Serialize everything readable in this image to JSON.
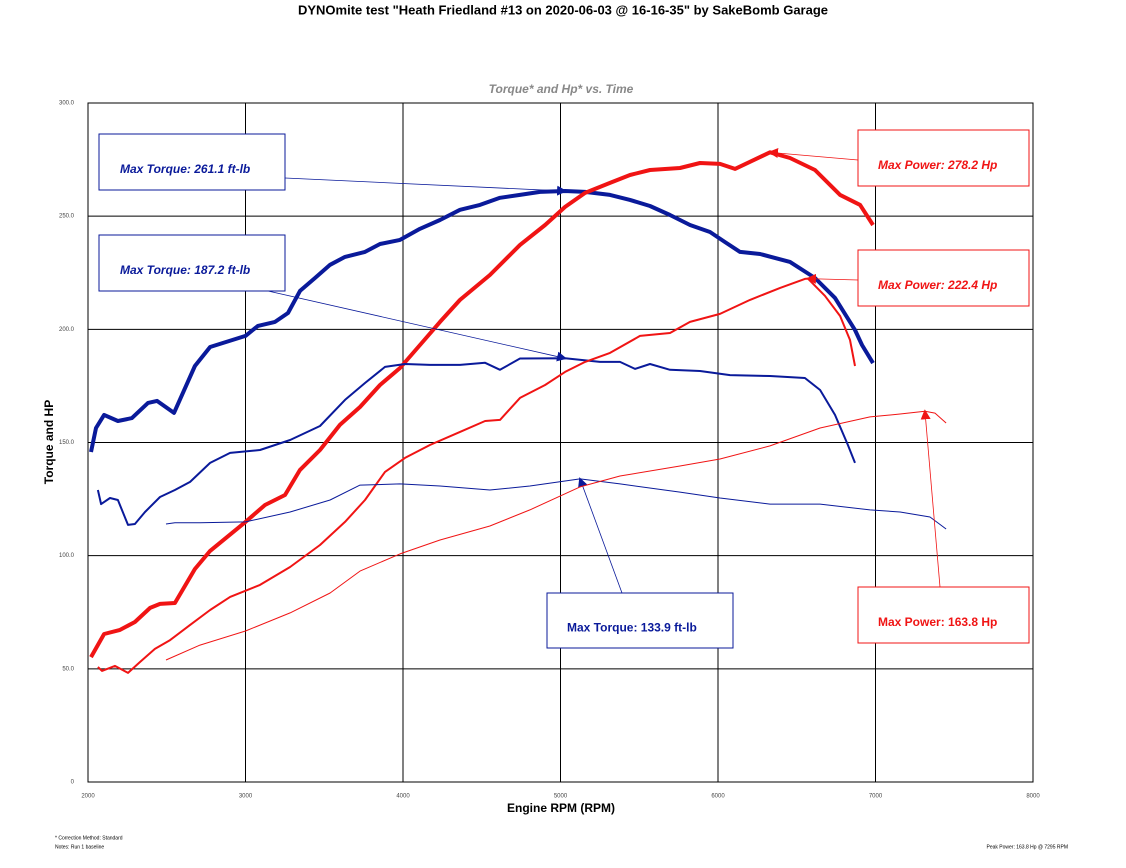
{
  "chart_data": {
    "type": "line",
    "title": "DYNOmite test \"Heath Friedland #13 on 2020-06-03 @ 16-16-35\" by SakeBomb Garage",
    "subtitle": "Torque* and Hp* vs. Time",
    "x_label": "Engine RPM (RPM)",
    "y_label": "Torque and HP",
    "footnotes": [
      "* Correction Method: Standard",
      "Notes: Run 1 baseline"
    ],
    "peak_note": "Peak Power: 163.8 Hp @ 7295 RPM",
    "xlim": [
      2000,
      8000
    ],
    "xticks": [
      2000,
      3000,
      4000,
      5000,
      6000,
      7000,
      8000
    ],
    "ylim": [
      0,
      300
    ],
    "yticks": [
      {
        "value": 0,
        "label": "0"
      },
      {
        "value": 50,
        "label": "50.0"
      },
      {
        "value": 100,
        "label": "100.0"
      },
      {
        "value": 150,
        "label": "150.0"
      },
      {
        "value": 200,
        "label": "200.0"
      },
      {
        "value": 250,
        "label": "250.0"
      },
      {
        "value": 300,
        "label": "300.0"
      }
    ],
    "grid": true,
    "series": [
      {
        "color": "#0a1a9a",
        "annotation": "Max Torque: 261.1 ft-lb",
        "x": [
          2019,
          2051,
          2102,
          2190,
          2279,
          2381,
          2438,
          2546,
          2679,
          2775,
          3000,
          3079,
          3187,
          3270,
          3346,
          3441,
          3537,
          3632,
          3759,
          3854,
          3981,
          4108,
          4235,
          4362,
          4489,
          4616,
          4743,
          4870,
          5029,
          5156,
          5314,
          5441,
          5568,
          5695,
          5822,
          5949,
          6044,
          6140,
          6267,
          6457,
          6616,
          6743,
          6870,
          6914,
          6984
        ],
        "values": [
          145.8,
          156.4,
          162.2,
          159.5,
          160.8,
          167.5,
          168.4,
          163.1,
          183.8,
          192.2,
          197.1,
          201.5,
          203.3,
          207.2,
          217.0,
          222.7,
          228.5,
          232.0,
          234.2,
          237.7,
          239.5,
          244.4,
          248.3,
          252.8,
          255.0,
          258.1,
          259.4,
          260.7,
          261.1,
          260.7,
          259.4,
          257.2,
          254.5,
          250.5,
          246.1,
          243.0,
          238.6,
          234.2,
          233.3,
          229.8,
          222.7,
          213.9,
          199.7,
          193.1,
          185.1
        ]
      },
      {
        "color": "#f01414",
        "annotation": "Max Power: 278.2 Hp",
        "x": [
          2019,
          2102,
          2203,
          2298,
          2394,
          2457,
          2552,
          2679,
          2775,
          3000,
          3124,
          3251,
          3346,
          3473,
          3600,
          3727,
          3854,
          3981,
          4108,
          4235,
          4362,
          4552,
          4743,
          4902,
          5029,
          5156,
          5314,
          5441,
          5568,
          5759,
          5886,
          6013,
          6108,
          6203,
          6330,
          6457,
          6616,
          6775,
          6902,
          6984
        ],
        "values": [
          55.2,
          65.4,
          67.2,
          70.7,
          76.9,
          78.7,
          79.1,
          94.1,
          102.1,
          114.9,
          122.4,
          126.8,
          137.9,
          146.7,
          157.8,
          165.7,
          175.4,
          182.9,
          193.1,
          203.3,
          213.0,
          224.0,
          237.3,
          246.1,
          254.1,
          260.3,
          264.7,
          268.2,
          270.4,
          271.3,
          273.5,
          273.1,
          270.9,
          274.0,
          278.2,
          275.7,
          270.4,
          259.4,
          255.0,
          246.1
        ]
      },
      {
        "color": "#0a1a9a",
        "annotation": "Max Torque: 187.2 ft-lb",
        "x": [
          2063,
          2083,
          2140,
          2190,
          2254,
          2298,
          2362,
          2457,
          2552,
          2648,
          2775,
          2902,
          3092,
          3283,
          3473,
          3632,
          3759,
          3886,
          4013,
          4171,
          4362,
          4521,
          4616,
          4743,
          5029,
          5251,
          5378,
          5473,
          5568,
          5695,
          5886,
          6076,
          6330,
          6552,
          6648,
          6743,
          6825,
          6870
        ],
        "values": [
          129.0,
          122.8,
          125.5,
          124.6,
          113.6,
          114.0,
          119.3,
          125.9,
          129.0,
          132.6,
          141.0,
          145.4,
          146.7,
          151.1,
          157.3,
          168.8,
          176.3,
          183.4,
          184.7,
          184.3,
          184.3,
          185.2,
          182.1,
          187.1,
          187.2,
          185.6,
          185.6,
          182.5,
          184.7,
          182.1,
          181.6,
          179.8,
          179.4,
          178.5,
          173.2,
          162.2,
          148.9,
          141.0
        ]
      },
      {
        "color": "#f01414",
        "annotation": "Max Power: 222.4 Hp",
        "x": [
          2063,
          2089,
          2171,
          2254,
          2330,
          2425,
          2521,
          2648,
          2775,
          2902,
          3092,
          3283,
          3473,
          3632,
          3759,
          3886,
          4013,
          4171,
          4362,
          4521,
          4616,
          4743,
          4902,
          5029,
          5156,
          5314,
          5505,
          5695,
          5822,
          6013,
          6203,
          6394,
          6552,
          6571,
          6679,
          6775,
          6838,
          6870
        ],
        "values": [
          50.8,
          49.1,
          51.3,
          48.2,
          53.0,
          58.8,
          62.7,
          69.4,
          76.0,
          81.8,
          87.1,
          95.0,
          104.7,
          114.9,
          124.6,
          137.0,
          143.2,
          148.9,
          154.7,
          159.5,
          160.0,
          169.7,
          175.4,
          181.2,
          185.6,
          189.6,
          197.1,
          198.4,
          203.3,
          206.8,
          213.0,
          218.3,
          222.3,
          222.4,
          214.8,
          205.9,
          195.3,
          183.8
        ]
      },
      {
        "color": "#0a1a9a",
        "annotation": "Max Torque: 133.9 ft-lb",
        "x": [
          2495,
          2552,
          2711,
          3000,
          3283,
          3537,
          3727,
          3981,
          4235,
          4552,
          4806,
          5124,
          5378,
          5759,
          6013,
          6330,
          6648,
          6965,
          7156,
          7346,
          7448
        ],
        "values": [
          114.0,
          114.5,
          114.5,
          114.9,
          119.3,
          124.6,
          131.2,
          131.7,
          130.8,
          129.0,
          130.8,
          133.9,
          131.7,
          128.1,
          125.5,
          122.8,
          122.8,
          120.2,
          119.3,
          117.1,
          111.8
        ]
      },
      {
        "color": "#f01414",
        "annotation": "Max Power: 163.8 Hp",
        "x": [
          2495,
          2711,
          3000,
          3283,
          3537,
          3727,
          3981,
          4235,
          4552,
          4806,
          5124,
          5378,
          5759,
          6013,
          6330,
          6648,
          6965,
          7156,
          7314,
          7378,
          7448
        ],
        "values": [
          53.9,
          60.5,
          66.7,
          74.7,
          83.5,
          93.2,
          100.8,
          106.9,
          113.1,
          120.2,
          130.4,
          135.2,
          139.6,
          142.7,
          148.5,
          156.4,
          161.3,
          162.6,
          163.8,
          163.0,
          158.6
        ]
      }
    ]
  }
}
